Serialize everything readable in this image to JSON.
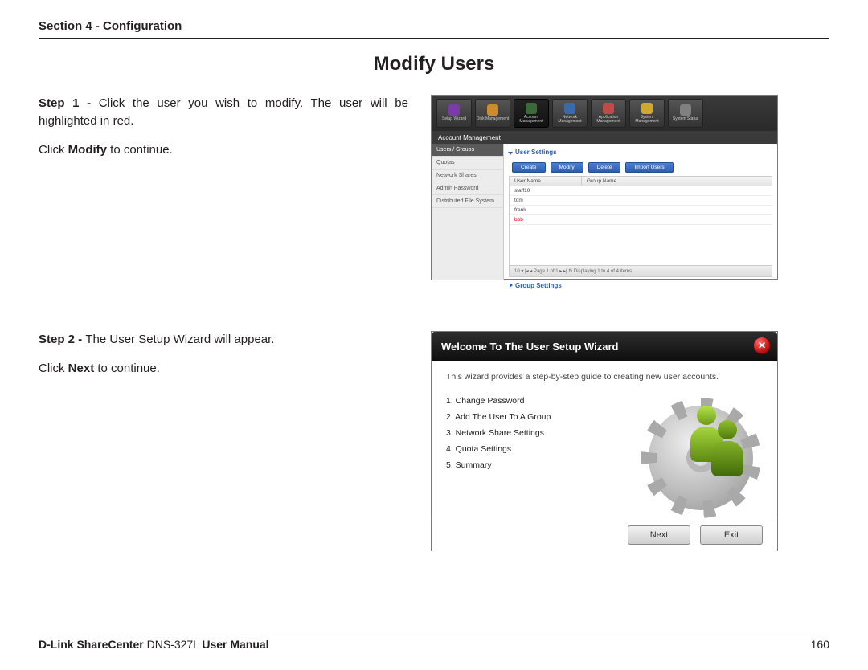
{
  "header": {
    "section": "Section 4 - Configuration"
  },
  "title": "Modify Users",
  "step1": {
    "label": "Step 1 - ",
    "text": "Click the user you wish to modify. The user will be highlighted in red.",
    "line2a": "Click ",
    "line2bold": "Modify",
    "line2b": " to continue."
  },
  "step2": {
    "label": "Step 2 - ",
    "text": "The User Setup Wizard will appear.",
    "line2a": "Click ",
    "line2bold": "Next",
    "line2b": " to continue."
  },
  "shot1": {
    "top_tabs": [
      {
        "label": "Setup Wizard",
        "color": "#7a3aa8"
      },
      {
        "label": "Disk Management",
        "color": "#d08a2e"
      },
      {
        "label": "Account Management",
        "color": "#3a6a3a",
        "active": true
      },
      {
        "label": "Network Management",
        "color": "#3a6aa8"
      },
      {
        "label": "Application Management",
        "color": "#c04a4a"
      },
      {
        "label": "System Management",
        "color": "#d0a82e"
      },
      {
        "label": "System Status",
        "color": "#808080"
      }
    ],
    "bar": "Account Management",
    "side": [
      "Users / Groups",
      "Quotas",
      "Network Shares",
      "Admin Password",
      "Distributed File System"
    ],
    "panel_title": "User Settings",
    "buttons": [
      "Create",
      "Modify",
      "Delete",
      "Import Users"
    ],
    "th": [
      "User Name",
      "Group Name"
    ],
    "rows": [
      {
        "u": "staff10",
        "g": ""
      },
      {
        "u": "tom",
        "g": ""
      },
      {
        "u": "frank",
        "g": ""
      },
      {
        "u": "bob",
        "g": "",
        "sel": true
      }
    ],
    "pager": "10 ▾   |◂ ◂  Page 1  of 1  ▸ ▸|  ↻   Displaying 1 to 4 of 4 items",
    "group_title": "Group Settings"
  },
  "shot2": {
    "title": "Welcome To The User Setup Wizard",
    "intro": "This wizard provides a step-by-step guide to creating new user accounts.",
    "steps": [
      "1. Change Password",
      "2. Add The User To A Group",
      "3. Network Share Settings",
      "4. Quota Settings",
      "5. Summary"
    ],
    "btn_next": "Next",
    "btn_exit": "Exit"
  },
  "footer": {
    "brand_bold": "D-Link ShareCenter",
    "model": " DNS-327L ",
    "suffix_bold": "User Manual",
    "page": "160"
  }
}
